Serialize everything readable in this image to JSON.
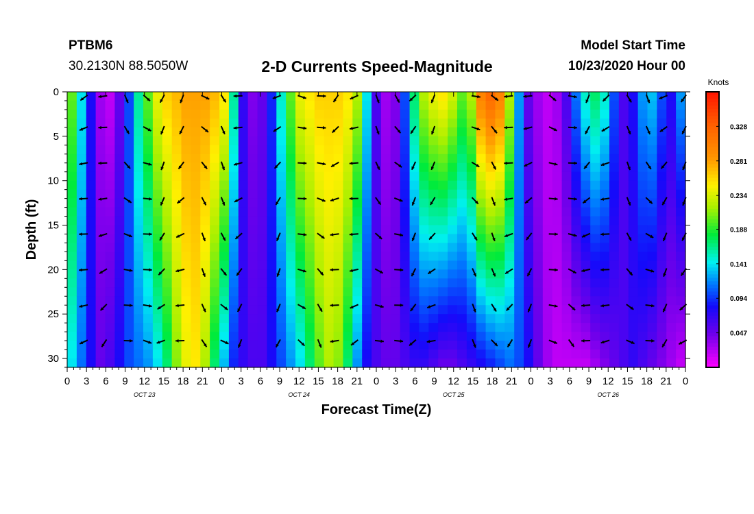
{
  "header": {
    "station": "PTBM6",
    "coords": "30.2130N 88.5050W",
    "title": "2-D Currents Speed-Magnitude",
    "model_start_label": "Model Start Time",
    "model_start_value": "10/23/2020 Hour 00"
  },
  "chart_data": {
    "type": "heatmap",
    "title": "2-D Currents Speed-Magnitude",
    "xlabel": "Forecast Time(Z)",
    "ylabel": "Depth (ft)",
    "x_tick_labels": [
      "0",
      "3",
      "6",
      "9",
      "12",
      "15",
      "18",
      "21",
      "0",
      "3",
      "6",
      "9",
      "12",
      "15",
      "18",
      "21",
      "0",
      "3",
      "6",
      "9",
      "12",
      "15",
      "18",
      "21",
      "0",
      "3",
      "6",
      "9",
      "12",
      "15",
      "18",
      "21",
      "0"
    ],
    "x_range_hours": [
      0,
      96
    ],
    "day_labels": [
      {
        "label": "OCT 23",
        "center_hour": 12
      },
      {
        "label": "OCT 24",
        "center_hour": 36
      },
      {
        "label": "OCT 25",
        "center_hour": 60
      },
      {
        "label": "OCT 26",
        "center_hour": 84
      }
    ],
    "y_ticks": [
      0,
      5,
      10,
      15,
      20,
      25,
      30
    ],
    "y_range": [
      0,
      31
    ],
    "y_inverted": true,
    "colorbar": {
      "title": "Knots",
      "ticks": [
        0.047,
        0.094,
        0.141,
        0.188,
        0.234,
        0.281,
        0.328
      ],
      "range": [
        0,
        0.375
      ]
    },
    "speed_profile": {
      "hours": [
        0,
        1.5,
        3,
        4.5,
        6,
        7.5,
        9,
        10.5,
        12,
        13.5,
        15,
        16.5,
        18,
        19.5,
        21,
        22.5,
        24,
        25.5,
        27,
        28.5,
        30,
        31.5,
        33,
        34.5,
        36,
        37.5,
        39,
        40.5,
        42,
        43.5,
        45,
        46.5,
        48,
        49.5,
        51,
        52.5,
        54,
        55.5,
        57,
        58.5,
        60,
        61.5,
        63,
        64.5,
        66,
        67.5,
        69,
        70.5,
        72,
        73.5,
        75,
        76.5,
        78,
        79.5,
        81,
        82.5,
        84,
        85.5,
        87,
        88.5,
        90,
        91.5,
        93,
        94.5,
        96
      ],
      "surface_knots": [
        0.2,
        0.14,
        0.08,
        0.03,
        0.02,
        0.05,
        0.1,
        0.16,
        0.2,
        0.24,
        0.26,
        0.27,
        0.28,
        0.28,
        0.28,
        0.27,
        0.25,
        0.16,
        0.07,
        0.04,
        0.05,
        0.09,
        0.15,
        0.2,
        0.24,
        0.25,
        0.26,
        0.26,
        0.26,
        0.25,
        0.22,
        0.14,
        0.06,
        0.03,
        0.04,
        0.1,
        0.17,
        0.22,
        0.24,
        0.25,
        0.23,
        0.2,
        0.22,
        0.3,
        0.32,
        0.3,
        0.22,
        0.12,
        0.05,
        0.03,
        0.02,
        0.03,
        0.06,
        0.11,
        0.15,
        0.17,
        0.15,
        0.1,
        0.06,
        0.08,
        0.12,
        0.13,
        0.1,
        0.08,
        0.12
      ],
      "bottom_knots": [
        0.14,
        0.11,
        0.08,
        0.05,
        0.06,
        0.08,
        0.1,
        0.11,
        0.12,
        0.14,
        0.17,
        0.21,
        0.24,
        0.25,
        0.22,
        0.17,
        0.13,
        0.09,
        0.07,
        0.06,
        0.06,
        0.08,
        0.1,
        0.12,
        0.14,
        0.17,
        0.2,
        0.22,
        0.21,
        0.17,
        0.12,
        0.08,
        0.06,
        0.05,
        0.05,
        0.06,
        0.07,
        0.07,
        0.06,
        0.05,
        0.05,
        0.06,
        0.07,
        0.08,
        0.09,
        0.1,
        0.11,
        0.1,
        0.08,
        0.05,
        0.03,
        0.02,
        0.02,
        0.02,
        0.02,
        0.03,
        0.04,
        0.05,
        0.06,
        0.07,
        0.06,
        0.05,
        0.04,
        0.03,
        0.02
      ]
    },
    "vector_hours": [
      3,
      6,
      9,
      12,
      15,
      18,
      21,
      24,
      27,
      33,
      36,
      39,
      42,
      45,
      48,
      51,
      54,
      57,
      63,
      66,
      69,
      72,
      75,
      78,
      81,
      84,
      87,
      90,
      93,
      96
    ],
    "vector_depths": [
      0,
      4,
      8,
      12,
      16,
      20,
      24,
      28
    ]
  }
}
